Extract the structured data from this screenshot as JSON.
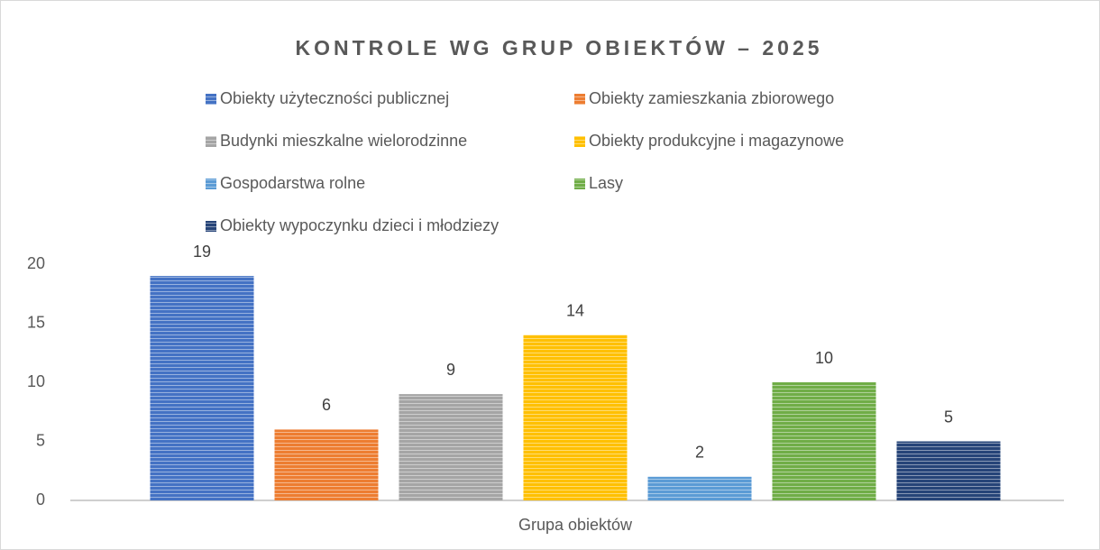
{
  "chart_data": {
    "type": "bar",
    "title": "KONTROLE WG GRUP OBIEKTÓW – 2025",
    "categories": [
      "Grupa obiektów"
    ],
    "series": [
      {
        "name": "Obiekty użyteczności publicznej",
        "color": "#4472c4",
        "values": [
          19
        ]
      },
      {
        "name": "Obiekty zamieszkania zbiorowego",
        "color": "#ed7d31",
        "values": [
          6
        ]
      },
      {
        "name": "Budynki mieszkalne wielorodzinne",
        "color": "#a5a5a5",
        "values": [
          9
        ]
      },
      {
        "name": "Obiekty produkcyjne i magazynowe",
        "color": "#ffc000",
        "values": [
          14
        ]
      },
      {
        "name": "Gospodarstwa rolne",
        "color": "#5b9bd5",
        "values": [
          2
        ]
      },
      {
        "name": "Lasy",
        "color": "#70ad47",
        "values": [
          10
        ]
      },
      {
        "name": "Obiekty wypoczynku dzieci i młodziezy",
        "color": "#264478",
        "values": [
          5
        ]
      }
    ],
    "ylim": [
      0,
      20
    ],
    "yticks": [
      0,
      5,
      10,
      15,
      20
    ],
    "grid": false,
    "legend": "top"
  }
}
